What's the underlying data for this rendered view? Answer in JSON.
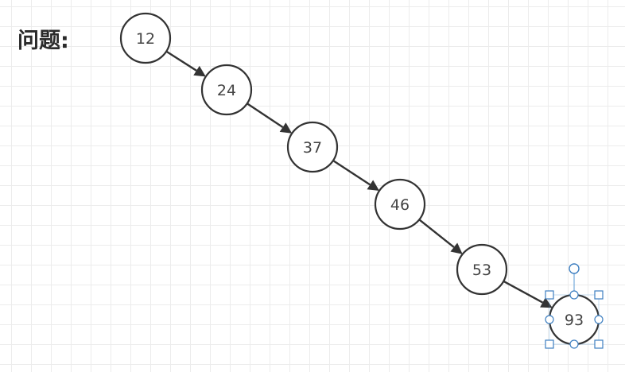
{
  "heading": "问题:",
  "nodes": [
    {
      "id": "n12",
      "label": "12"
    },
    {
      "id": "n24",
      "label": "24"
    },
    {
      "id": "n37",
      "label": "37"
    },
    {
      "id": "n46",
      "label": "46"
    },
    {
      "id": "n53",
      "label": "53"
    },
    {
      "id": "n93",
      "label": "93",
      "selected": true
    }
  ],
  "edges": [
    {
      "from": "n12",
      "to": "n24"
    },
    {
      "from": "n24",
      "to": "n37"
    },
    {
      "from": "n37",
      "to": "n46"
    },
    {
      "from": "n46",
      "to": "n53"
    },
    {
      "from": "n53",
      "to": "n93"
    }
  ],
  "colors": {
    "stroke": "#333333",
    "selection": "#3e7fc1",
    "grid": "#ececec"
  }
}
